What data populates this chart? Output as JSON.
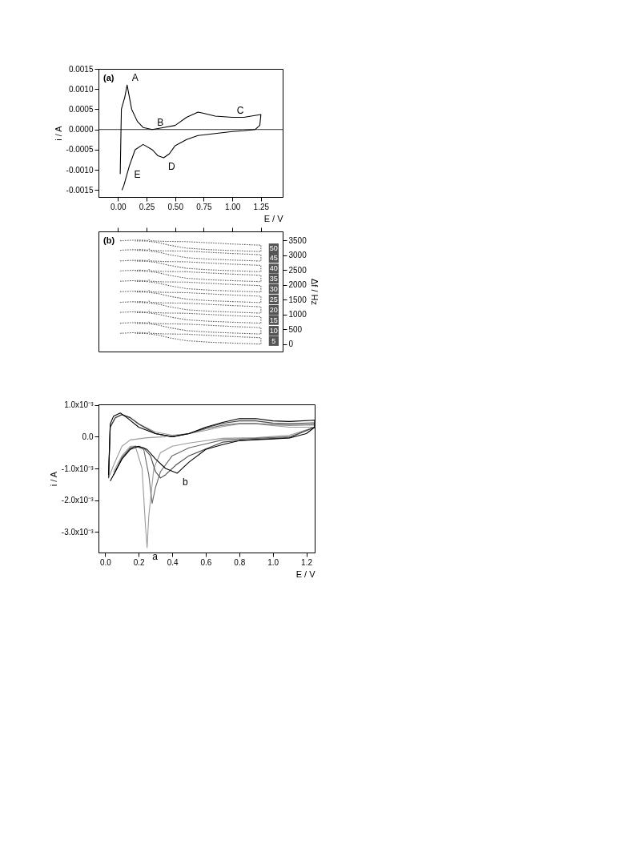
{
  "chart_data": [
    {
      "type": "line",
      "ylabel": "i / A",
      "xlabel": "E / V",
      "xlim": [
        -0.17,
        1.44
      ],
      "ylim": [
        -0.00167,
        0.0015
      ],
      "xticks": [
        {
          "value": 0,
          "label": "0.00"
        },
        {
          "value": 0.25,
          "label": "0.25"
        },
        {
          "value": 0.5,
          "label": "0.50"
        },
        {
          "value": 0.75,
          "label": "0.75"
        },
        {
          "value": 1,
          "label": "1.00"
        },
        {
          "value": 1.25,
          "label": "1.25"
        }
      ],
      "yticks": [
        {
          "value": -0.0015,
          "label": "-0.0015"
        },
        {
          "value": -0.001,
          "label": "-0.0010"
        },
        {
          "value": -0.0005,
          "label": "-0.0005"
        },
        {
          "value": 0,
          "label": "0.0000"
        },
        {
          "value": 0.0005,
          "label": "0.0005"
        },
        {
          "value": 0.001,
          "label": "0.0010"
        },
        {
          "value": 0.0015,
          "label": "0.0015"
        }
      ],
      "ref_lines": [
        {
          "axis": "y",
          "value": 0,
          "color": "#000000"
        }
      ],
      "annotations": [
        "(a)",
        {
          "text": "A",
          "x": 0.08,
          "y": 0.0011
        },
        {
          "text": "B",
          "x": 0.3,
          "y": 0.0
        },
        {
          "text": "C",
          "x": 1.0,
          "y": 0.0003
        },
        {
          "text": "D",
          "x": 0.4,
          "y": -0.0007
        },
        {
          "text": "E",
          "x": 0.1,
          "y": -0.0009
        }
      ],
      "series": [
        {
          "color": "#000000",
          "x": [
            0.02,
            0.03,
            0.06,
            0.08,
            0.12,
            0.17,
            0.22,
            0.3,
            0.4,
            0.5,
            0.6,
            0.7,
            0.75,
            0.85,
            1.0,
            1.1,
            1.25,
            1.24,
            1.2,
            1.1,
            1.0,
            0.85,
            0.7,
            0.6,
            0.5,
            0.45,
            0.4,
            0.35,
            0.3,
            0.22,
            0.15,
            0.1,
            0.05,
            0.035
          ],
          "values": [
            -0.0011,
            0.0005,
            0.0008,
            0.0011,
            0.0005,
            0.0002,
            5e-05,
            0.0,
            5e-05,
            0.0001,
            0.0003,
            0.00043,
            0.0004,
            0.00033,
            0.0003,
            0.0003,
            0.00037,
            0.0001,
            0.0,
            -3e-05,
            -5e-05,
            -0.0001,
            -0.00015,
            -0.00025,
            -0.0004,
            -0.0006,
            -0.0007,
            -0.00065,
            -0.0005,
            -0.00037,
            -0.0005,
            -0.0009,
            -0.0014,
            -0.0015
          ]
        }
      ]
    },
    {
      "type": "line",
      "line_style": "dotted",
      "tick_labels": "y",
      "legend": "right",
      "xlim": [
        -0.17,
        1.44
      ],
      "xticks": [
        {
          "value": 0,
          "label": null
        },
        {
          "value": 0.25,
          "label": null
        },
        {
          "value": 0.5,
          "label": null
        },
        {
          "value": 0.75,
          "label": null
        },
        {
          "value": 1,
          "label": null
        },
        {
          "value": 1.25,
          "label": null
        }
      ],
      "y2label": "Δf / Hz",
      "y2lim": [
        -250,
        3800
      ],
      "y2ticks": [
        0,
        500,
        1000,
        1500,
        2000,
        2500,
        3000,
        3500
      ],
      "annotations": [
        "(b)"
      ],
      "x": [
        0.02,
        0.1,
        0.2,
        0.26,
        0.27,
        0.29,
        0.4,
        0.6,
        0.8,
        1.0,
        1.25,
        1.25,
        1.0,
        0.8,
        0.6,
        0.45,
        0.35,
        0.25,
        0.15
      ],
      "series": [
        {
          "name": "50",
          "axis": "y2",
          "color": "#555555",
          "values": [
            3485,
            3500,
            3510,
            3490,
            3525,
            3485,
            3465,
            3455,
            3415,
            3375,
            3335,
            3120,
            3155,
            3185,
            3235,
            3335,
            3425,
            3475,
            3480
          ]
        },
        {
          "name": "45",
          "axis": "y2",
          "color": "#555555",
          "values": [
            3165,
            3180,
            3190,
            3170,
            3205,
            3165,
            3145,
            3135,
            3095,
            3055,
            3015,
            2800,
            2835,
            2865,
            2915,
            3015,
            3105,
            3155,
            3160
          ]
        },
        {
          "name": "40",
          "axis": "y2",
          "color": "#555555",
          "values": [
            2805,
            2820,
            2830,
            2810,
            2845,
            2805,
            2785,
            2775,
            2735,
            2695,
            2655,
            2440,
            2475,
            2505,
            2555,
            2655,
            2745,
            2795,
            2800
          ]
        },
        {
          "name": "35",
          "axis": "y2",
          "color": "#555555",
          "values": [
            2470,
            2485,
            2495,
            2475,
            2510,
            2470,
            2450,
            2440,
            2400,
            2360,
            2320,
            2105,
            2140,
            2170,
            2220,
            2320,
            2410,
            2460,
            2465
          ]
        },
        {
          "name": "30",
          "axis": "y2",
          "color": "#555555",
          "values": [
            2120,
            2135,
            2145,
            2125,
            2160,
            2120,
            2100,
            2090,
            2050,
            2010,
            1970,
            1755,
            1790,
            1820,
            1870,
            1970,
            2060,
            2110,
            2115
          ]
        },
        {
          "name": "25",
          "axis": "y2",
          "color": "#555555",
          "values": [
            1765,
            1780,
            1790,
            1770,
            1805,
            1765,
            1745,
            1735,
            1695,
            1655,
            1615,
            1400,
            1435,
            1465,
            1515,
            1615,
            1705,
            1755,
            1760
          ]
        },
        {
          "name": "20",
          "axis": "y2",
          "color": "#555555",
          "values": [
            1410,
            1425,
            1435,
            1415,
            1450,
            1410,
            1390,
            1380,
            1340,
            1300,
            1260,
            1045,
            1080,
            1110,
            1160,
            1260,
            1350,
            1400,
            1405
          ]
        },
        {
          "name": "15",
          "axis": "y2",
          "color": "#555555",
          "values": [
            1070,
            1085,
            1095,
            1075,
            1110,
            1070,
            1050,
            1040,
            1000,
            960,
            920,
            705,
            740,
            770,
            820,
            920,
            1010,
            1060,
            1065
          ]
        },
        {
          "name": "10",
          "axis": "y2",
          "color": "#555555",
          "values": [
            705,
            720,
            730,
            710,
            745,
            705,
            685,
            675,
            635,
            595,
            555,
            340,
            375,
            405,
            455,
            555,
            645,
            695,
            700
          ]
        },
        {
          "name": "5",
          "axis": "y2",
          "color": "#555555",
          "values": [
            365,
            380,
            390,
            370,
            405,
            365,
            345,
            335,
            295,
            255,
            215,
            0,
            35,
            65,
            115,
            215,
            305,
            355,
            360
          ]
        }
      ]
    },
    {
      "type": "line",
      "xlabel": "E / V",
      "ylabel": "i / A",
      "xlim": [
        -0.04,
        1.25
      ],
      "ylim": [
        -0.00365,
        0.00102
      ],
      "xticks": [
        {
          "value": 0,
          "label": "0.0"
        },
        0.2,
        0.4,
        0.6,
        0.8,
        {
          "value": 1,
          "label": "1.0"
        },
        1.2
      ],
      "yticks": [
        {
          "value": -0.003,
          "label": "-3.0x10⁻³"
        },
        {
          "value": -0.002,
          "label": "-2.0x10⁻³"
        },
        {
          "value": -0.001,
          "label": "-1.0x10⁻³"
        },
        {
          "value": 0,
          "label": "0.0"
        },
        {
          "value": 0.001,
          "label": "1.0x10⁻³"
        }
      ],
      "annotations": [
        {
          "text": "a",
          "x": 0.25,
          "y": -0.0035
        },
        {
          "text": "b",
          "x": 0.43,
          "y": -0.00115
        }
      ],
      "series": [
        {
          "color": "#9a9a9a",
          "x": [
            0.36,
            0.25,
            0.15,
            0.1,
            0.05,
            0.02,
            0.03,
            0.06,
            0.1,
            0.15,
            0.2,
            0.3,
            0.4,
            0.5,
            0.6,
            0.7,
            0.8,
            0.9,
            1.0,
            1.1,
            1.25,
            1.25,
            1.1,
            0.9,
            0.7,
            0.5,
            0.4,
            0.33,
            0.29,
            0.26,
            0.25,
            0.24,
            0.22,
            0.18,
            0.15,
            0.1,
            0.05
          ],
          "values": [
            0.0,
            -3e-05,
            -0.0001,
            -0.0003,
            -0.0009,
            -0.0013,
            0.0003,
            0.0006,
            0.0007,
            0.0006,
            0.0004,
            0.00015,
            5e-05,
            0.0001,
            0.0002,
            0.00032,
            0.0004,
            0.0004,
            0.00035,
            0.0003,
            0.0003,
            0.0003,
            5e-05,
            -3e-05,
            -5e-05,
            -0.0002,
            -0.0003,
            -0.0005,
            -0.001,
            -0.0025,
            -0.0035,
            -0.0028,
            -0.001,
            -0.0003,
            -0.0003,
            -0.0006,
            -0.0011
          ]
        },
        {
          "color": "#666666",
          "x": [
            0.02,
            0.03,
            0.06,
            0.1,
            0.15,
            0.2,
            0.3,
            0.4,
            0.5,
            0.6,
            0.7,
            0.8,
            0.9,
            1.0,
            1.1,
            1.25,
            1.25,
            1.1,
            0.9,
            0.7,
            0.5,
            0.4,
            0.33,
            0.3,
            0.28,
            0.26,
            0.23,
            0.18,
            0.15,
            0.1,
            0.05
          ],
          "values": [
            -0.0013,
            0.0003,
            0.0006,
            0.0007,
            0.0006,
            0.0004,
            0.0001,
            0.0,
            0.0001,
            0.00025,
            0.00036,
            0.00042,
            0.00042,
            0.00038,
            0.00036,
            0.00038,
            0.0003,
            0.0,
            -5e-05,
            -0.0001,
            -0.00035,
            -0.0006,
            -0.0011,
            -0.0016,
            -0.0021,
            -0.0012,
            -0.0004,
            -0.0003,
            -0.00035,
            -0.00065,
            -0.0012
          ]
        },
        {
          "color": "#444444",
          "x": [
            0.02,
            0.03,
            0.06,
            0.1,
            0.15,
            0.2,
            0.3,
            0.4,
            0.5,
            0.6,
            0.7,
            0.8,
            0.9,
            1.0,
            1.1,
            1.25,
            1.25,
            1.1,
            0.9,
            0.7,
            0.5,
            0.42,
            0.36,
            0.33,
            0.3,
            0.27,
            0.23,
            0.18,
            0.15,
            0.1,
            0.05
          ],
          "values": [
            -0.0013,
            0.0003,
            0.0006,
            0.0007,
            0.0006,
            0.0004,
            0.0001,
            0.0,
            0.0001,
            0.00028,
            0.00042,
            0.0005,
            0.0005,
            0.00043,
            0.00041,
            0.00044,
            0.0003,
            -3e-05,
            -8e-05,
            -0.00017,
            -0.0006,
            -0.0009,
            -0.0012,
            -0.0013,
            -0.0011,
            -0.0006,
            -0.00035,
            -0.0003,
            -0.00037,
            -0.0007,
            -0.0012
          ]
        },
        {
          "color": "#000000",
          "x": [
            0.02,
            0.03,
            0.05,
            0.09,
            0.13,
            0.2,
            0.3,
            0.4,
            0.5,
            0.6,
            0.7,
            0.8,
            0.9,
            1.0,
            1.1,
            1.25,
            1.25,
            1.2,
            1.1,
            1.0,
            0.8,
            0.7,
            0.6,
            0.5,
            0.43,
            0.36,
            0.3,
            0.25,
            0.2,
            0.15,
            0.1,
            0.05,
            0.03
          ],
          "values": [
            -0.0012,
            0.0004,
            0.00065,
            0.00075,
            0.0006,
            0.0003,
            0.0001,
            0.0,
            0.0001,
            0.0003,
            0.00045,
            0.00057,
            0.00057,
            0.0005,
            0.00048,
            0.00052,
            0.0003,
            0.0001,
            -4e-05,
            -7e-05,
            -0.00012,
            -0.00025,
            -0.0004,
            -0.0008,
            -0.00115,
            -0.001,
            -0.0007,
            -0.0004,
            -0.0003,
            -0.0004,
            -0.0007,
            -0.0012,
            -0.0014
          ]
        }
      ]
    }
  ]
}
